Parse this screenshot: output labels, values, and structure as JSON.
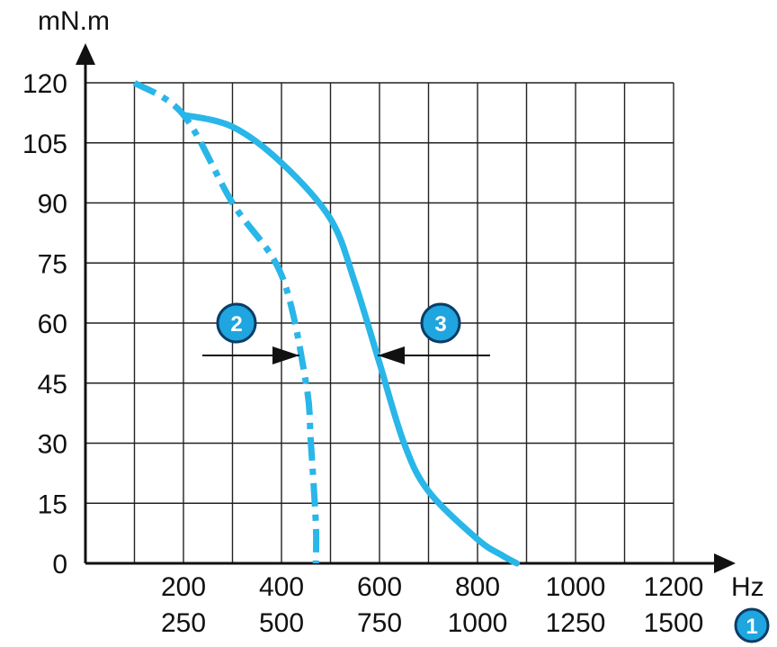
{
  "chart_data": {
    "type": "line",
    "ylabel": "mN.m",
    "xlabel": "Hz",
    "ylim": [
      0,
      120
    ],
    "yticks": [
      "0",
      "15",
      "30",
      "45",
      "60",
      "75",
      "90",
      "105",
      "120"
    ],
    "x_scales": [
      {
        "ticks": [
          "200",
          "400",
          "600",
          "800",
          "1000",
          "1200"
        ],
        "range": [
          0,
          1300
        ]
      },
      {
        "ticks": [
          "250",
          "500",
          "750",
          "1000",
          "1250",
          "1500"
        ],
        "range": [
          0,
          1625
        ]
      }
    ],
    "grid": true,
    "series": [
      {
        "marker": "2",
        "line_style": "dash-dot",
        "color": "#29b6e8",
        "x": [
          100,
          200,
          300,
          400,
          450,
          460,
          470,
          470
        ],
        "y": [
          120,
          112,
          90,
          72,
          45,
          30,
          10,
          0
        ]
      },
      {
        "marker": "3",
        "line_style": "solid",
        "color": "#29b6e8",
        "x": [
          200,
          300,
          400,
          500,
          550,
          600,
          650,
          700,
          800,
          850,
          880
        ],
        "y": [
          112,
          109,
          100,
          86,
          70,
          50,
          30,
          18,
          6,
          2,
          0
        ]
      }
    ],
    "badges": [
      {
        "label": "2",
        "points_to": "series-2"
      },
      {
        "label": "3",
        "points_to": "series-3"
      }
    ],
    "axis_badge": "1",
    "colors": {
      "accent": "#29b6e8",
      "grid": "#222222",
      "badge_fill": "#1fa5df",
      "badge_stroke": "#0b3d66"
    }
  }
}
